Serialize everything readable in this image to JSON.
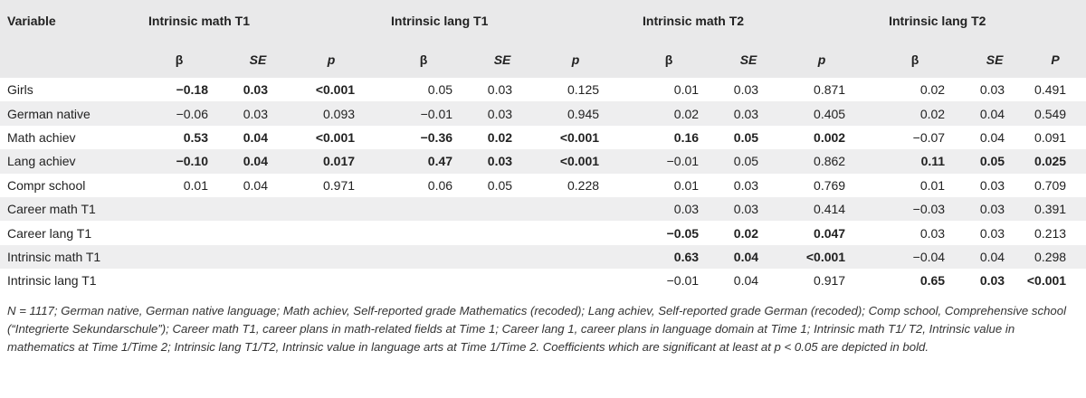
{
  "table": {
    "variable_header": "Variable",
    "groups": [
      "Intrinsic math T1",
      "Intrinsic lang T1",
      "Intrinsic math T2",
      "Intrinsic lang T2"
    ],
    "subheaders": [
      [
        "β",
        "SE",
        "p"
      ],
      [
        "β",
        "SE",
        "p"
      ],
      [
        "β",
        "SE",
        "p"
      ],
      [
        "β",
        "SE",
        "P"
      ]
    ],
    "rows": [
      {
        "label": "Girls",
        "cells": [
          [
            "−0.18",
            true
          ],
          [
            "0.03",
            true
          ],
          [
            "<0.001",
            true
          ],
          [
            "0.05",
            false
          ],
          [
            "0.03",
            false
          ],
          [
            "0.125",
            false
          ],
          [
            "0.01",
            false
          ],
          [
            "0.03",
            false
          ],
          [
            "0.871",
            false
          ],
          [
            "0.02",
            false
          ],
          [
            "0.03",
            false
          ],
          [
            "0.491",
            false
          ]
        ]
      },
      {
        "label": "German native",
        "cells": [
          [
            "−0.06",
            false
          ],
          [
            "0.03",
            false
          ],
          [
            "0.093",
            false
          ],
          [
            "−0.01",
            false
          ],
          [
            "0.03",
            false
          ],
          [
            "0.945",
            false
          ],
          [
            "0.02",
            false
          ],
          [
            "0.03",
            false
          ],
          [
            "0.405",
            false
          ],
          [
            "0.02",
            false
          ],
          [
            "0.04",
            false
          ],
          [
            "0.549",
            false
          ]
        ]
      },
      {
        "label": "Math achiev",
        "cells": [
          [
            "0.53",
            true
          ],
          [
            "0.04",
            true
          ],
          [
            "<0.001",
            true
          ],
          [
            "−0.36",
            true
          ],
          [
            "0.02",
            true
          ],
          [
            "<0.001",
            true
          ],
          [
            "0.16",
            true
          ],
          [
            "0.05",
            true
          ],
          [
            "0.002",
            true
          ],
          [
            "−0.07",
            false
          ],
          [
            "0.04",
            false
          ],
          [
            "0.091",
            false
          ]
        ]
      },
      {
        "label": "Lang achiev",
        "cells": [
          [
            "−0.10",
            true
          ],
          [
            "0.04",
            true
          ],
          [
            "0.017",
            true
          ],
          [
            "0.47",
            true
          ],
          [
            "0.03",
            true
          ],
          [
            "<0.001",
            true
          ],
          [
            "−0.01",
            false
          ],
          [
            "0.05",
            false
          ],
          [
            "0.862",
            false
          ],
          [
            "0.11",
            true
          ],
          [
            "0.05",
            true
          ],
          [
            "0.025",
            true
          ]
        ]
      },
      {
        "label": "Compr school",
        "cells": [
          [
            "0.01",
            false
          ],
          [
            "0.04",
            false
          ],
          [
            "0.971",
            false
          ],
          [
            "0.06",
            false
          ],
          [
            "0.05",
            false
          ],
          [
            "0.228",
            false
          ],
          [
            "0.01",
            false
          ],
          [
            "0.03",
            false
          ],
          [
            "0.769",
            false
          ],
          [
            "0.01",
            false
          ],
          [
            "0.03",
            false
          ],
          [
            "0.709",
            false
          ]
        ]
      },
      {
        "label": "Career math T1",
        "cells": [
          [
            "",
            false
          ],
          [
            "",
            false
          ],
          [
            "",
            false
          ],
          [
            "",
            false
          ],
          [
            "",
            false
          ],
          [
            "",
            false
          ],
          [
            "0.03",
            false
          ],
          [
            "0.03",
            false
          ],
          [
            "0.414",
            false
          ],
          [
            "−0.03",
            false
          ],
          [
            "0.03",
            false
          ],
          [
            "0.391",
            false
          ]
        ]
      },
      {
        "label": "Career lang T1",
        "cells": [
          [
            "",
            false
          ],
          [
            "",
            false
          ],
          [
            "",
            false
          ],
          [
            "",
            false
          ],
          [
            "",
            false
          ],
          [
            "",
            false
          ],
          [
            "−0.05",
            true
          ],
          [
            "0.02",
            true
          ],
          [
            "0.047",
            true
          ],
          [
            "0.03",
            false
          ],
          [
            "0.03",
            false
          ],
          [
            "0.213",
            false
          ]
        ]
      },
      {
        "label": "Intrinsic math T1",
        "cells": [
          [
            "",
            false
          ],
          [
            "",
            false
          ],
          [
            "",
            false
          ],
          [
            "",
            false
          ],
          [
            "",
            false
          ],
          [
            "",
            false
          ],
          [
            "0.63",
            true
          ],
          [
            "0.04",
            true
          ],
          [
            "<0.001",
            true
          ],
          [
            "−0.04",
            false
          ],
          [
            "0.04",
            false
          ],
          [
            "0.298",
            false
          ]
        ]
      },
      {
        "label": "Intrinsic lang T1",
        "cells": [
          [
            "",
            false
          ],
          [
            "",
            false
          ],
          [
            "",
            false
          ],
          [
            "",
            false
          ],
          [
            "",
            false
          ],
          [
            "",
            false
          ],
          [
            "−0.01",
            false
          ],
          [
            "0.04",
            false
          ],
          [
            "0.917",
            false
          ],
          [
            "0.65",
            true
          ],
          [
            "0.03",
            true
          ],
          [
            "<0.001",
            true
          ]
        ]
      }
    ]
  },
  "note": "N = 1117; German native, German native language; Math achiev, Self-reported grade Mathematics (recoded); Lang achiev, Self-reported grade German (recoded); Comp school, Comprehensive school (“Integrierte Sekundarschule”); Career math T1, career plans in math-related fields at Time 1; Career lang 1, career plans in language domain at Time 1; Intrinsic math T1/ T2, Intrinsic value in mathematics at Time 1/Time 2; Intrinsic lang T1/T2, Intrinsic value in language arts at Time 1/Time 2. Coefficients which are significant at least at p < 0.05 are depicted in bold."
}
